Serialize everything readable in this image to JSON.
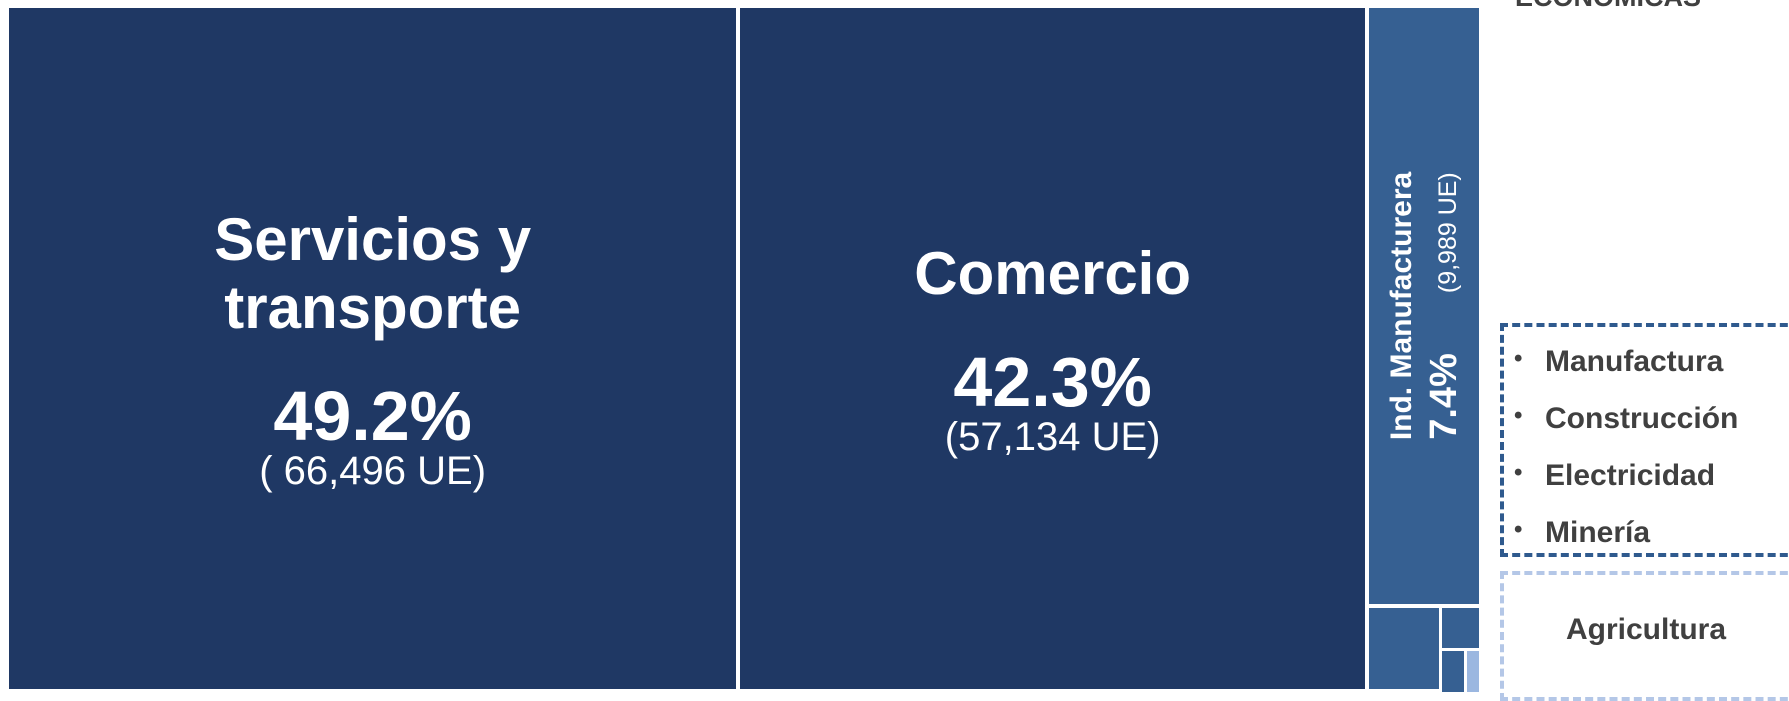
{
  "chart_data": {
    "type": "treemap",
    "title": "ECONÓMICAS",
    "categories": [
      "Servicios y transporte",
      "Comercio",
      "Ind. Manufacturera"
    ],
    "values": [
      49.2,
      42.3,
      7.4
    ],
    "value_labels": [
      "49.2%",
      "42.3%",
      "7.4%"
    ],
    "counts": [
      66496,
      57134,
      9989
    ],
    "count_labels": [
      "( 66,496 UE)",
      "(57,134 UE)",
      "(9,989 UE)"
    ],
    "colors": [
      "#1f3864",
      "#1f3864",
      "#366092"
    ],
    "legend": {
      "groups": [
        {
          "items": [
            "Manufactura",
            "Construcción",
            "Electricidad",
            "Minería"
          ]
        },
        {
          "items": [
            "Agricultura"
          ]
        }
      ]
    }
  }
}
